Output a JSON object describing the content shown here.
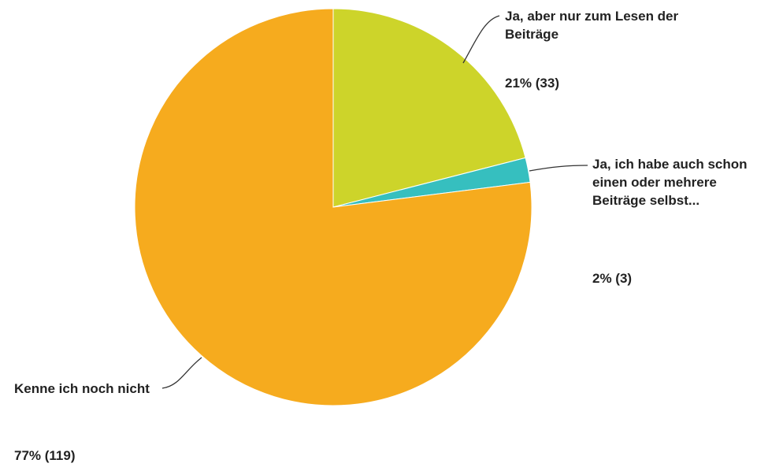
{
  "chart_data": {
    "type": "pie",
    "categories": [
      "Ja, aber nur zum Lesen der Beiträge",
      "Ja, ich habe auch schon einen oder mehrere Beiträge selbst...",
      "Kenne ich noch nicht"
    ],
    "values": [
      21,
      2,
      77
    ],
    "value_labels": [
      "21% (33)",
      "2% (3)",
      "77% (119)"
    ],
    "colors": [
      "#cdd42a",
      "#36bfbf",
      "#f6ab1e"
    ]
  }
}
